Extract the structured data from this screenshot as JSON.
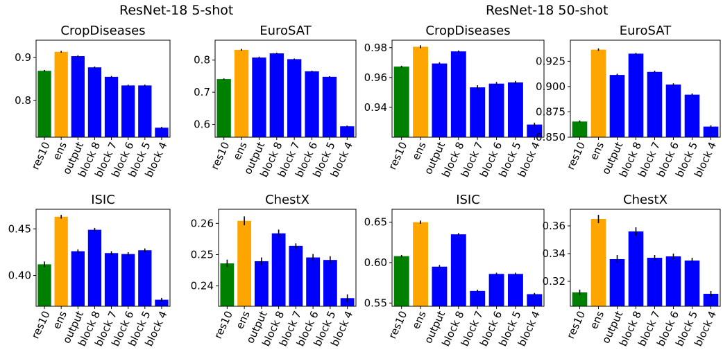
{
  "group_titles": [
    "ResNet-18 5-shot",
    "ResNet-18 50-shot"
  ],
  "colors": {
    "res10": "#008000",
    "ens": "#ffa500",
    "other": "#0000ff",
    "error": "#000000"
  },
  "chart_data": [
    {
      "type": "bar",
      "title": "CropDiseases",
      "group": "ResNet-18 5-shot",
      "categories": [
        "res10",
        "ens",
        "output",
        "block 8",
        "block 7",
        "block 6",
        "block 5",
        "block 4"
      ],
      "values": [
        0.869,
        0.913,
        0.903,
        0.877,
        0.855,
        0.835,
        0.835,
        0.737
      ],
      "errors": [
        0.002,
        0.002,
        0.002,
        0.002,
        0.002,
        0.002,
        0.002,
        0.002
      ],
      "ylim": [
        0.715,
        0.94
      ],
      "yticks": [
        0.8,
        0.9
      ],
      "ytick_labels": [
        "0.8",
        "0.9"
      ]
    },
    {
      "type": "bar",
      "title": "EuroSAT",
      "group": "ResNet-18 5-shot",
      "categories": [
        "res10",
        "ens",
        "output",
        "block 8",
        "block 7",
        "block 6",
        "block 5",
        "block 4"
      ],
      "values": [
        0.741,
        0.832,
        0.808,
        0.821,
        0.803,
        0.765,
        0.748,
        0.594
      ],
      "errors": [
        0.002,
        0.003,
        0.003,
        0.002,
        0.002,
        0.002,
        0.002,
        0.002
      ],
      "ylim": [
        0.56,
        0.862
      ],
      "yticks": [
        0.6,
        0.7,
        0.8
      ],
      "ytick_labels": [
        "0.6",
        "0.7",
        "0.8"
      ]
    },
    {
      "type": "bar",
      "title": "CropDiseases",
      "group": "ResNet-18 50-shot",
      "categories": [
        "res10",
        "ens",
        "output",
        "block 8",
        "block 7",
        "block 6",
        "block 5",
        "block 4"
      ],
      "values": [
        0.9673,
        0.9806,
        0.9694,
        0.9775,
        0.9534,
        0.9559,
        0.9567,
        0.9285
      ],
      "errors": [
        0.0006,
        0.001,
        0.0008,
        0.0006,
        0.0014,
        0.0011,
        0.001,
        0.0012
      ],
      "ylim": [
        0.92,
        0.985
      ],
      "yticks": [
        0.94,
        0.96,
        0.98
      ],
      "ytick_labels": [
        "0.94",
        "0.96",
        "0.98"
      ]
    },
    {
      "type": "bar",
      "title": "EuroSAT",
      "group": "ResNet-18 50-shot",
      "categories": [
        "res10",
        "ens",
        "output",
        "block 8",
        "block 7",
        "block 6",
        "block 5",
        "block 4"
      ],
      "values": [
        0.8655,
        0.9365,
        0.9115,
        0.9325,
        0.9145,
        0.902,
        0.892,
        0.8605
      ],
      "errors": [
        0.001,
        0.0012,
        0.0012,
        0.0008,
        0.0012,
        0.0012,
        0.0012,
        0.0012
      ],
      "ylim": [
        0.85,
        0.9458
      ],
      "yticks": [
        0.85,
        0.875,
        0.9,
        0.925
      ],
      "ytick_labels": [
        "0.850",
        "0.875",
        "0.900",
        "0.925"
      ]
    },
    {
      "type": "bar",
      "title": "ISIC",
      "group": "ResNet-18 5-shot",
      "categories": [
        "res10",
        "ens",
        "output",
        "block 8",
        "block 7",
        "block 6",
        "block 5",
        "block 4"
      ],
      "values": [
        0.412,
        0.463,
        0.426,
        0.449,
        0.424,
        0.423,
        0.427,
        0.374
      ],
      "errors": [
        0.003,
        0.002,
        0.002,
        0.002,
        0.002,
        0.002,
        0.002,
        0.002
      ],
      "ylim": [
        0.367,
        0.471
      ],
      "yticks": [
        0.4,
        0.45
      ],
      "ytick_labels": [
        "0.40",
        "0.45"
      ]
    },
    {
      "type": "bar",
      "title": "ChestX",
      "group": "ResNet-18 5-shot",
      "categories": [
        "res10",
        "ens",
        "output",
        "block 8",
        "block 7",
        "block 6",
        "block 5",
        "block 4"
      ],
      "values": [
        0.2472,
        0.2608,
        0.2479,
        0.2568,
        0.2528,
        0.2491,
        0.2483,
        0.2361
      ],
      "errors": [
        0.0012,
        0.0014,
        0.0012,
        0.0012,
        0.0008,
        0.0011,
        0.0012,
        0.0012
      ],
      "ylim": [
        0.2335,
        0.2645
      ],
      "yticks": [
        0.24,
        0.25,
        0.26
      ],
      "ytick_labels": [
        "0.24",
        "0.25",
        "0.26"
      ]
    },
    {
      "type": "bar",
      "title": "ISIC",
      "group": "ResNet-18 50-shot",
      "categories": [
        "res10",
        "ens",
        "output",
        "block 8",
        "block 7",
        "block 6",
        "block 5",
        "block 4"
      ],
      "values": [
        0.608,
        0.65,
        0.595,
        0.635,
        0.565,
        0.586,
        0.586,
        0.561
      ],
      "errors": [
        0.0015,
        0.002,
        0.002,
        0.0015,
        0.0015,
        0.0015,
        0.0015,
        0.0015
      ],
      "ylim": [
        0.546,
        0.666
      ],
      "yticks": [
        0.55,
        0.6,
        0.65
      ],
      "ytick_labels": [
        "0.55",
        "0.60",
        "0.65"
      ]
    },
    {
      "type": "bar",
      "title": "ChestX",
      "group": "ResNet-18 50-shot",
      "categories": [
        "res10",
        "ens",
        "output",
        "block 8",
        "block 7",
        "block 6",
        "block 5",
        "block 4"
      ],
      "values": [
        0.312,
        0.365,
        0.336,
        0.356,
        0.337,
        0.338,
        0.335,
        0.311
      ],
      "errors": [
        0.002,
        0.003,
        0.003,
        0.003,
        0.002,
        0.002,
        0.002,
        0.002
      ],
      "ylim": [
        0.302,
        0.372
      ],
      "yticks": [
        0.32,
        0.34,
        0.36
      ],
      "ytick_labels": [
        "0.32",
        "0.34",
        "0.36"
      ]
    }
  ]
}
